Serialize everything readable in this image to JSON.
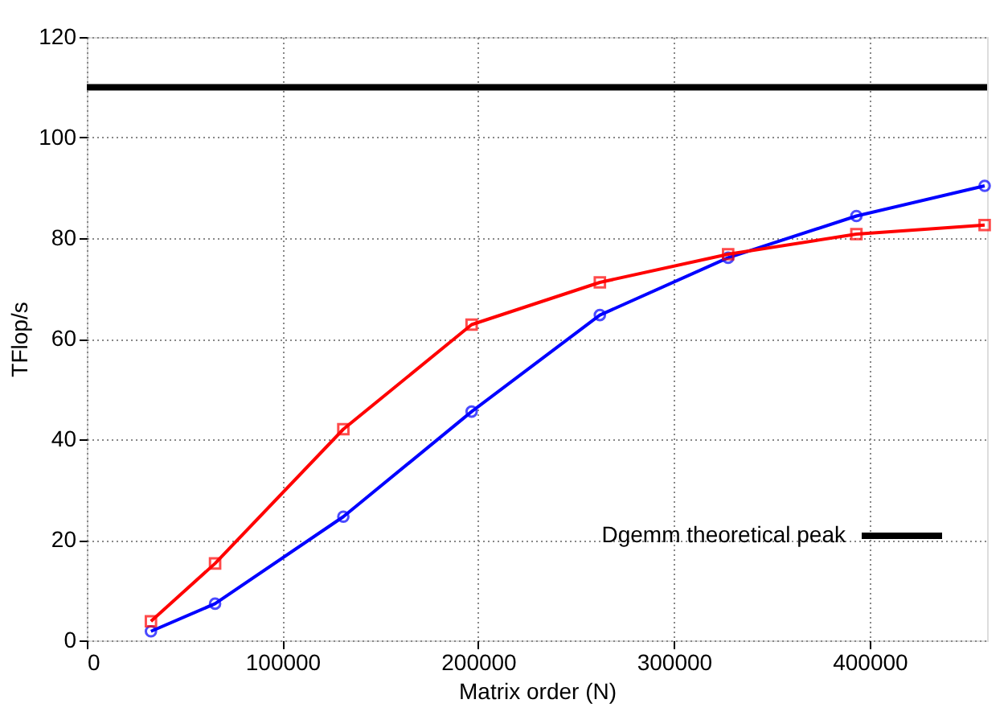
{
  "chart_data": {
    "type": "line",
    "xlabel": "Matrix order (N)",
    "ylabel": "TFlop/s",
    "x": [
      32768,
      65536,
      131072,
      196608,
      262144,
      327680,
      393216,
      458752
    ],
    "series": [
      {
        "color": "#0000ff",
        "marker": "circle",
        "values": [
          1.8,
          7.3,
          24.6,
          45.5,
          64.7,
          76.1,
          84.4,
          90.4
        ]
      },
      {
        "color": "#ff0000",
        "marker": "square",
        "values": [
          3.8,
          15.3,
          42.0,
          62.8,
          71.2,
          76.8,
          80.8,
          82.6
        ]
      }
    ],
    "ref_lines": [
      {
        "axis": "y",
        "value": 110,
        "label": "Dgemm theoretical peak",
        "color": "#000000",
        "line_style": "solid"
      }
    ],
    "xlim": [
      0,
      460000
    ],
    "xticks": [
      0,
      100000,
      200000,
      300000,
      400000
    ],
    "ylim": [
      0,
      120
    ],
    "yticks": [
      0,
      20,
      40,
      60,
      80,
      100,
      120
    ],
    "grid": true,
    "legend": "bottom right",
    "line_style": "solid"
  }
}
